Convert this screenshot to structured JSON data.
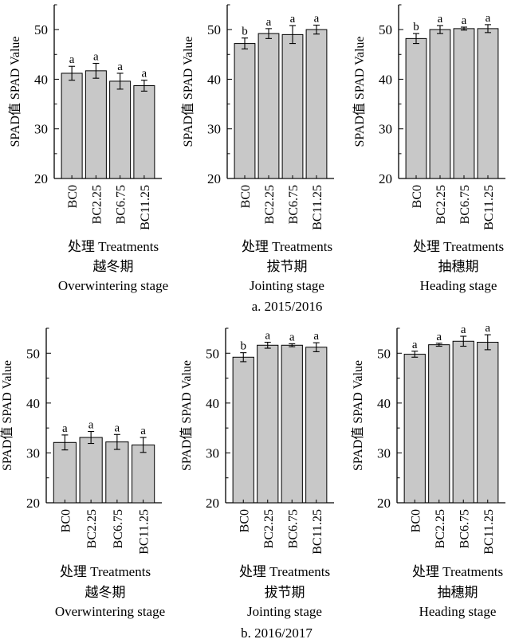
{
  "panels": [
    {
      "caption": "a. 2015/2016",
      "xlabel": "处理 Treatments",
      "charts": [
        {
          "type": "bar",
          "stage_cn": "越冬期",
          "stage_en": "Overwintering stage",
          "ylabel": "SPAD值 SPAD Value",
          "ylim": [
            20,
            55
          ],
          "yticks": [
            20,
            30,
            40,
            50
          ],
          "categories": [
            "BC0",
            "BC2.25",
            "BC6.75",
            "BC11.25"
          ],
          "values": [
            41.2,
            41.7,
            39.6,
            38.7
          ],
          "errors": [
            1.4,
            1.5,
            1.6,
            1.1
          ],
          "letters": [
            "a",
            "a",
            "a",
            "a"
          ]
        },
        {
          "type": "bar",
          "stage_cn": "拔节期",
          "stage_en": "Jointing stage",
          "ylabel": "SPAD值 SPAD Value",
          "ylim": [
            20,
            55
          ],
          "yticks": [
            20,
            30,
            40,
            50
          ],
          "categories": [
            "BC0",
            "BC2.25",
            "BC6.75",
            "BC11.25"
          ],
          "values": [
            47.2,
            49.2,
            49.0,
            50.0
          ],
          "errors": [
            1.1,
            1.0,
            1.8,
            0.9
          ],
          "letters": [
            "b",
            "a",
            "a",
            "a"
          ]
        },
        {
          "type": "bar",
          "stage_cn": "抽穗期",
          "stage_en": "Heading stage",
          "ylabel": "SPAD值 SPAD Value",
          "ylim": [
            20,
            55
          ],
          "yticks": [
            20,
            30,
            40,
            50
          ],
          "categories": [
            "BC0",
            "BC2.25",
            "BC6.75",
            "BC11.25"
          ],
          "values": [
            48.2,
            50.0,
            50.2,
            50.2
          ],
          "errors": [
            1.0,
            0.8,
            0.3,
            0.8
          ],
          "letters": [
            "b",
            "a",
            "a",
            "a"
          ]
        }
      ]
    },
    {
      "caption": "b. 2016/2017",
      "xlabel": "处理 Treatments",
      "charts": [
        {
          "type": "bar",
          "stage_cn": "越冬期",
          "stage_en": "Overwintering stage",
          "ylabel": "SPAD值 SPAD Value",
          "ylim": [
            20,
            55
          ],
          "yticks": [
            20,
            30,
            40,
            50
          ],
          "categories": [
            "BC0",
            "BC2.25",
            "BC6.75",
            "BC11.25"
          ],
          "values": [
            32.1,
            33.1,
            32.2,
            31.6
          ],
          "errors": [
            1.5,
            1.2,
            1.5,
            1.5
          ],
          "letters": [
            "a",
            "a",
            "a",
            "a"
          ]
        },
        {
          "type": "bar",
          "stage_cn": "拔节期",
          "stage_en": "Jointing stage",
          "ylabel": "SPAD值 SPAD Value",
          "ylim": [
            20,
            55
          ],
          "yticks": [
            20,
            30,
            40,
            50
          ],
          "categories": [
            "BC0",
            "BC2.25",
            "BC6.75",
            "BC11.25"
          ],
          "values": [
            49.2,
            51.6,
            51.6,
            51.2
          ],
          "errors": [
            0.9,
            0.6,
            0.3,
            0.9
          ],
          "letters": [
            "b",
            "a",
            "a",
            "a"
          ]
        },
        {
          "type": "bar",
          "stage_cn": "抽穗期",
          "stage_en": "Heading stage",
          "ylabel": "SPAD值 SPAD Value",
          "ylim": [
            20,
            55
          ],
          "yticks": [
            20,
            30,
            40,
            50
          ],
          "categories": [
            "BC0",
            "BC2.25",
            "BC6.75",
            "BC11.25"
          ],
          "values": [
            49.8,
            51.7,
            52.4,
            52.2
          ],
          "errors": [
            0.6,
            0.3,
            1.0,
            1.5
          ],
          "letters": [
            "a",
            "a",
            "a",
            "a"
          ]
        }
      ]
    }
  ],
  "style": {
    "bar_fill": "#c8c8c8",
    "bar_stroke": "#000000"
  },
  "chart_data": [
    {
      "type": "bar",
      "title": "越冬期 Overwintering stage (2015/2016)",
      "xlabel": "处理 Treatments",
      "ylabel": "SPAD值 SPAD Value",
      "ylim": [
        20,
        55
      ],
      "categories": [
        "BC0",
        "BC2.25",
        "BC6.75",
        "BC11.25"
      ],
      "values": [
        41.2,
        41.7,
        39.6,
        38.7
      ]
    },
    {
      "type": "bar",
      "title": "拔节期 Jointing stage (2015/2016)",
      "xlabel": "处理 Treatments",
      "ylabel": "SPAD值 SPAD Value",
      "ylim": [
        20,
        55
      ],
      "categories": [
        "BC0",
        "BC2.25",
        "BC6.75",
        "BC11.25"
      ],
      "values": [
        47.2,
        49.2,
        49.0,
        50.0
      ]
    },
    {
      "type": "bar",
      "title": "抽穗期 Heading stage (2015/2016)",
      "xlabel": "处理 Treatments",
      "ylabel": "SPAD值 SPAD Value",
      "ylim": [
        20,
        55
      ],
      "categories": [
        "BC0",
        "BC2.25",
        "BC6.75",
        "BC11.25"
      ],
      "values": [
        48.2,
        50.0,
        50.2,
        50.2
      ]
    },
    {
      "type": "bar",
      "title": "越冬期 Overwintering stage (2016/2017)",
      "xlabel": "处理 Treatments",
      "ylabel": "SPAD值 SPAD Value",
      "ylim": [
        20,
        55
      ],
      "categories": [
        "BC0",
        "BC2.25",
        "BC6.75",
        "BC11.25"
      ],
      "values": [
        32.1,
        33.1,
        32.2,
        31.6
      ]
    },
    {
      "type": "bar",
      "title": "拔节期 Jointing stage (2016/2017)",
      "xlabel": "处理 Treatments",
      "ylabel": "SPAD值 SPAD Value",
      "ylim": [
        20,
        55
      ],
      "categories": [
        "BC0",
        "BC2.25",
        "BC6.75",
        "BC11.25"
      ],
      "values": [
        49.2,
        51.6,
        51.6,
        51.2
      ]
    },
    {
      "type": "bar",
      "title": "抽穗期 Heading stage (2016/2017)",
      "xlabel": "处理 Treatments",
      "ylabel": "SPAD值 SPAD Value",
      "ylim": [
        20,
        55
      ],
      "categories": [
        "BC0",
        "BC2.25",
        "BC6.75",
        "BC11.25"
      ],
      "values": [
        49.8,
        51.7,
        52.4,
        52.2
      ]
    }
  ]
}
